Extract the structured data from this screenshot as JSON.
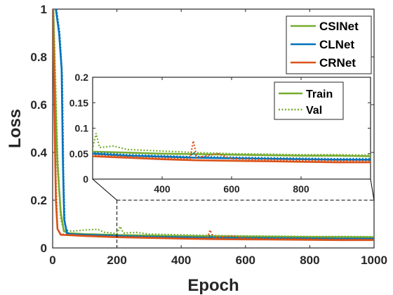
{
  "chart_data": {
    "type": "line",
    "xlabel": "Epoch",
    "ylabel": "Loss",
    "xlim": [
      0,
      1000
    ],
    "ylim": [
      0,
      1
    ],
    "xticks": [
      "0",
      "200",
      "400",
      "600",
      "800",
      "1000"
    ],
    "yticks": [
      "0",
      "0.2",
      "0.4",
      "0.6",
      "0.8",
      "1"
    ],
    "legend": {
      "position": "top-right",
      "entries": [
        "CSINet",
        "CLNet",
        "CRNet"
      ]
    },
    "series": [
      {
        "name": "CSINet",
        "color": "#77ac30",
        "train": [
          [
            2,
            1.0
          ],
          [
            8,
            0.65
          ],
          [
            15,
            0.35
          ],
          [
            25,
            0.15
          ],
          [
            35,
            0.07
          ],
          [
            50,
            0.062
          ],
          [
            100,
            0.058
          ],
          [
            200,
            0.054
          ],
          [
            300,
            0.052
          ],
          [
            400,
            0.05
          ],
          [
            500,
            0.049
          ],
          [
            600,
            0.048
          ],
          [
            700,
            0.047
          ],
          [
            800,
            0.046
          ],
          [
            900,
            0.046
          ],
          [
            1000,
            0.045
          ]
        ],
        "val": [
          [
            3,
            1.0
          ],
          [
            8,
            0.75
          ],
          [
            15,
            0.4
          ],
          [
            25,
            0.12
          ],
          [
            35,
            0.075
          ],
          [
            60,
            0.07
          ],
          [
            100,
            0.075
          ],
          [
            140,
            0.078
          ],
          [
            160,
            0.066
          ],
          [
            200,
            0.06
          ],
          [
            210,
            0.09
          ],
          [
            220,
            0.062
          ],
          [
            260,
            0.065
          ],
          [
            300,
            0.058
          ],
          [
            400,
            0.055
          ],
          [
            500,
            0.052
          ],
          [
            600,
            0.05
          ],
          [
            700,
            0.049
          ],
          [
            800,
            0.048
          ],
          [
            900,
            0.048
          ],
          [
            1000,
            0.047
          ]
        ]
      },
      {
        "name": "CLNet",
        "color": "#0072bd",
        "train": [
          [
            10,
            1.0
          ],
          [
            20,
            0.9
          ],
          [
            28,
            0.75
          ],
          [
            32,
            0.35
          ],
          [
            36,
            0.12
          ],
          [
            45,
            0.058
          ],
          [
            100,
            0.055
          ],
          [
            200,
            0.05
          ],
          [
            300,
            0.046
          ],
          [
            400,
            0.044
          ],
          [
            500,
            0.042
          ],
          [
            600,
            0.041
          ],
          [
            700,
            0.04
          ],
          [
            800,
            0.039
          ],
          [
            900,
            0.038
          ],
          [
            1000,
            0.038
          ]
        ],
        "val": [
          [
            12,
            1.0
          ],
          [
            22,
            0.9
          ],
          [
            30,
            0.72
          ],
          [
            34,
            0.3
          ],
          [
            38,
            0.1
          ],
          [
            50,
            0.058
          ],
          [
            100,
            0.056
          ],
          [
            200,
            0.052
          ],
          [
            300,
            0.048
          ],
          [
            400,
            0.046
          ],
          [
            480,
            0.044
          ],
          [
            490,
            0.052
          ],
          [
            500,
            0.044
          ],
          [
            600,
            0.043
          ],
          [
            700,
            0.042
          ],
          [
            800,
            0.041
          ],
          [
            900,
            0.04
          ],
          [
            1000,
            0.04
          ]
        ]
      },
      {
        "name": "CRNet",
        "color": "#d95319",
        "train": [
          [
            1,
            1.0
          ],
          [
            5,
            0.6
          ],
          [
            10,
            0.2
          ],
          [
            15,
            0.08
          ],
          [
            25,
            0.055
          ],
          [
            100,
            0.05
          ],
          [
            200,
            0.045
          ],
          [
            300,
            0.042
          ],
          [
            400,
            0.039
          ],
          [
            500,
            0.037
          ],
          [
            600,
            0.036
          ],
          [
            700,
            0.035
          ],
          [
            800,
            0.034
          ],
          [
            900,
            0.033
          ],
          [
            1000,
            0.033
          ]
        ],
        "val": [
          [
            1,
            1.0
          ],
          [
            6,
            0.65
          ],
          [
            10,
            0.3
          ],
          [
            15,
            0.08
          ],
          [
            25,
            0.058
          ],
          [
            100,
            0.052
          ],
          [
            200,
            0.047
          ],
          [
            300,
            0.044
          ],
          [
            400,
            0.041
          ],
          [
            480,
            0.04
          ],
          [
            490,
            0.075
          ],
          [
            500,
            0.042
          ],
          [
            560,
            0.05
          ],
          [
            600,
            0.04
          ],
          [
            700,
            0.038
          ],
          [
            800,
            0.037
          ],
          [
            900,
            0.036
          ],
          [
            1000,
            0.035
          ]
        ]
      }
    ],
    "inset": {
      "xlim": [
        200,
        1000
      ],
      "ylim": [
        0,
        0.2
      ],
      "xticks": [
        "400",
        "600",
        "800"
      ],
      "yticks": [
        "0",
        "0.05",
        "0.1",
        "0.15",
        "0.2"
      ],
      "legend": {
        "position": "top-right",
        "entries": [
          "Train",
          "Val"
        ]
      }
    }
  }
}
